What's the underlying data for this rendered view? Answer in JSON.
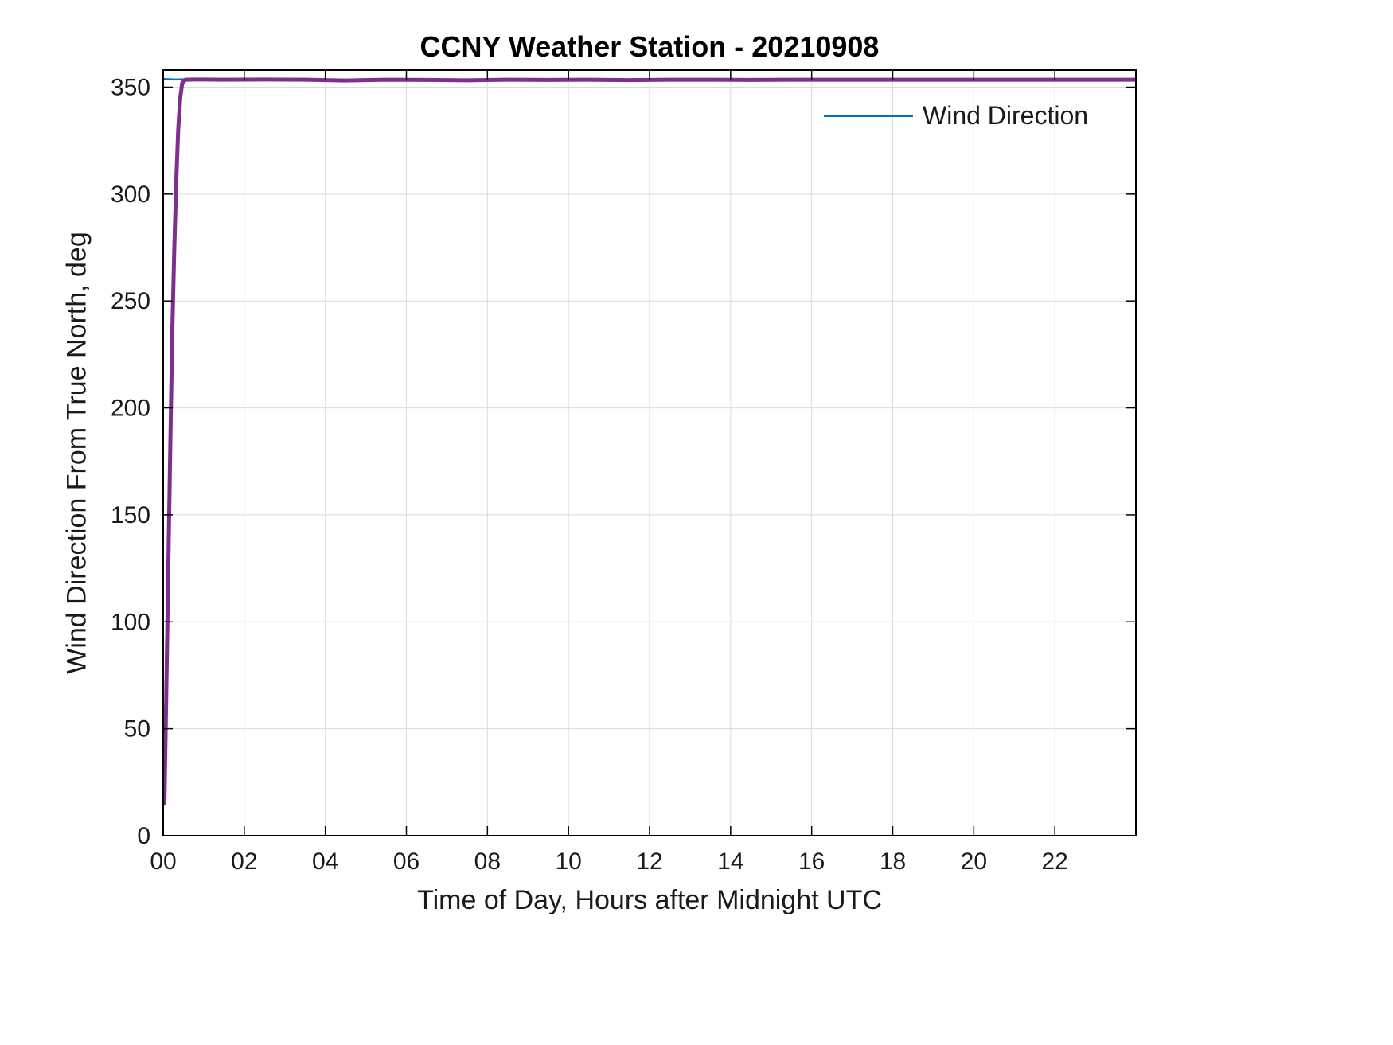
{
  "chart_data": {
    "type": "line",
    "title": "CCNY Weather Station - 20210908",
    "xlabel": "Time of Day, Hours after Midnight UTC",
    "ylabel": "Wind Direction From True North, deg",
    "xlim": [
      0,
      24
    ],
    "ylim": [
      0,
      358
    ],
    "xtick_values": [
      0,
      2,
      4,
      6,
      8,
      10,
      12,
      14,
      16,
      18,
      20,
      22
    ],
    "xtick_labels": [
      "00",
      "02",
      "04",
      "06",
      "08",
      "10",
      "12",
      "14",
      "16",
      "18",
      "20",
      "22"
    ],
    "ytick_values": [
      0,
      50,
      100,
      150,
      200,
      250,
      300,
      350
    ],
    "ytick_labels": [
      "0",
      "50",
      "100",
      "150",
      "200",
      "250",
      "300",
      "350"
    ],
    "grid": true,
    "background": "#ffffff",
    "axis_color": "#000000",
    "grid_color": "#dcdcdc",
    "tick_label_color": "#1a1a1a",
    "legend": {
      "position": "top-right",
      "entries": [
        {
          "label": "Wind Direction",
          "color": "#0072BD"
        }
      ]
    },
    "series": [
      {
        "name": "wind-direction-raw",
        "color": "#0072BD",
        "width": 2.5,
        "x": [
          0,
          0.3,
          0.6,
          1,
          1.5,
          2,
          3,
          4,
          4.4,
          4.6,
          5,
          5.5,
          6,
          6.3,
          6.6,
          7,
          7.4,
          7.8,
          8.2,
          8.6,
          9,
          9.4,
          9.8,
          10.2,
          10.6,
          11,
          11.4,
          11.8,
          12.3,
          13,
          13.6,
          14.2,
          15,
          16,
          17,
          18,
          19,
          20,
          21,
          22,
          23,
          23.98
        ],
        "y": [
          353.8,
          353.6,
          353.7,
          353.6,
          353.7,
          353.6,
          353.6,
          353.5,
          353.2,
          353.6,
          353.7,
          353.6,
          353.5,
          353.0,
          353.6,
          353.4,
          353.1,
          353.6,
          353.3,
          353.6,
          353.5,
          353.2,
          353.6,
          353.4,
          353.0,
          353.5,
          353.2,
          353.6,
          353.5,
          353.6,
          353.3,
          353.6,
          353.6,
          353.7,
          353.6,
          353.6,
          353.7,
          353.6,
          353.6,
          353.7,
          353.6,
          353.6
        ]
      },
      {
        "name": "wind-direction-thick",
        "color": "#7E2F8E",
        "width": 5,
        "x": [
          0.03,
          0.06,
          0.1,
          0.14,
          0.18,
          0.22,
          0.27,
          0.32,
          0.37,
          0.42,
          0.47,
          0.55,
          0.8,
          1.5,
          2.5,
          3.5,
          4.5,
          5.5,
          6.5,
          7.5,
          8.5,
          9.5,
          10.5,
          11.5,
          12.5,
          13.5,
          14.5,
          15.5,
          16.5,
          17.5,
          18.5,
          19.5,
          20.5,
          21.5,
          22.5,
          23.5,
          23.98
        ],
        "y": [
          15,
          48,
          95,
          142,
          188,
          232,
          272,
          305,
          330,
          345,
          352,
          353.5,
          353.6,
          353.5,
          353.6,
          353.5,
          353.1,
          353.5,
          353.4,
          353.2,
          353.5,
          353.4,
          353.5,
          353.3,
          353.5,
          353.5,
          353.4,
          353.5,
          353.5,
          353.5,
          353.5,
          353.5,
          353.5,
          353.5,
          353.5,
          353.5,
          353.5
        ]
      }
    ]
  }
}
